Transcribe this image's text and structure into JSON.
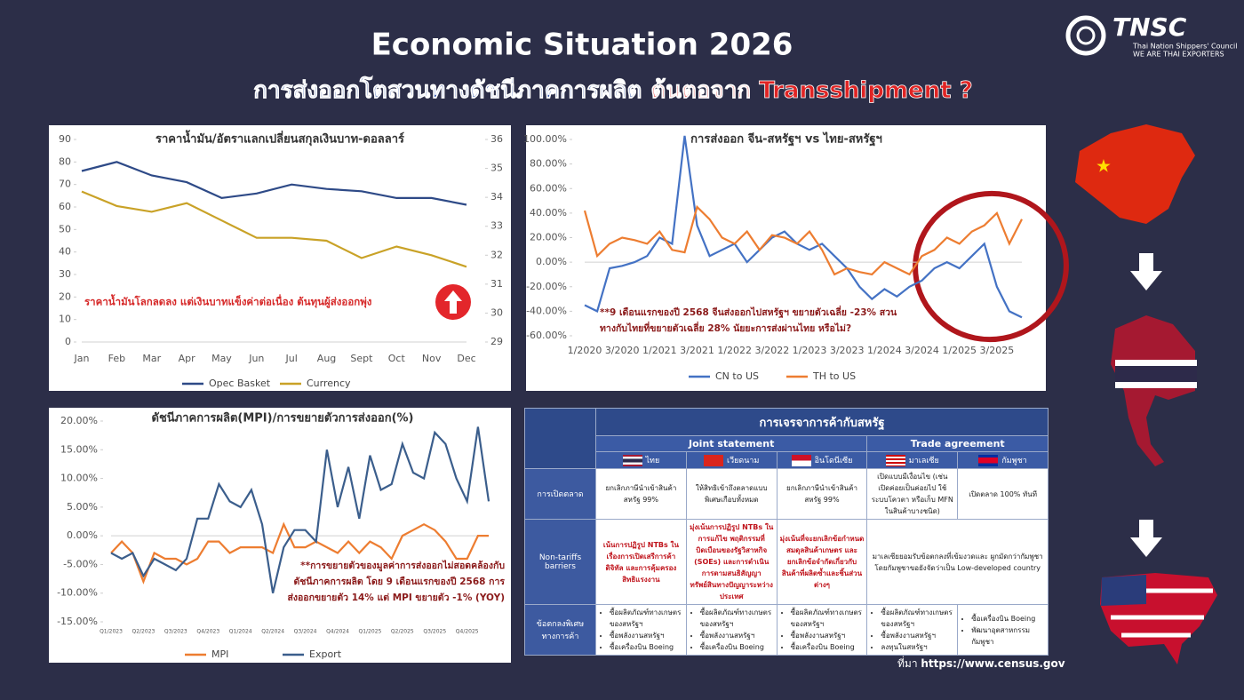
{
  "header": {
    "title": "Economic Situation 2026",
    "subtitle": "การส่งออกโตสวนทางดัชนีภาคการผลิต",
    "subtitle_highlight": "ต้นตอจาก Transshipment ?"
  },
  "logo": {
    "name": "TNSC",
    "line1": "Thai Nation Shippers' Council",
    "line2": "WE ARE THAI EXPORTERS"
  },
  "chart_data": [
    {
      "type": "line",
      "title": "ราคาน้ำมัน/อัตราแลกเปลี่ยนสกุลเงินบาท-ดอลลาร์",
      "categories": [
        "Jan",
        "Feb",
        "Mar",
        "Apr",
        "May",
        "Jun",
        "Jul",
        "Aug",
        "Sept",
        "Oct",
        "Nov",
        "Dec"
      ],
      "series": [
        {
          "name": "Opec Basket",
          "color": "#2e4a87",
          "values": [
            76,
            80,
            74,
            71,
            64,
            66,
            70,
            68,
            67,
            64,
            64,
            61
          ]
        },
        {
          "name": "Currency",
          "color": "#c9a227",
          "axis": "y2",
          "values": [
            34.2,
            33.7,
            33.5,
            33.8,
            33.2,
            32.6,
            32.6,
            32.5,
            31.9,
            32.3,
            32.0,
            31.6
          ]
        }
      ],
      "ylim": [
        0,
        90
      ],
      "yticks": [
        0,
        10,
        20,
        30,
        40,
        50,
        60,
        70,
        80,
        90
      ],
      "y2lim": [
        29,
        36
      ],
      "y2ticks": [
        29,
        30,
        31,
        32,
        33,
        34,
        35,
        36
      ],
      "grid": false,
      "legend": "bottom",
      "annotation": [
        "ราคาน้ำมันโลกลดลง แต่เงินบาทแข็งค่าต่อเนื่อง ต้นทุนผู้ส่งออกพุ่ง"
      ]
    },
    {
      "type": "line",
      "title": "การส่งออก จีน-สหรัฐฯ vs ไทย-สหรัฐฯ",
      "categories": [
        "1/2020",
        null,
        null,
        "3/2020",
        null,
        null,
        "1/2021",
        null,
        null,
        "3/2021",
        null,
        null,
        "1/2022",
        null,
        null,
        "3/2022",
        null,
        null,
        "1/2023",
        null,
        null,
        "3/2023",
        null,
        null,
        "1/2024",
        null,
        null,
        "3/2024",
        null,
        null,
        "1/2025",
        null,
        null,
        "3/2025",
        null,
        null
      ],
      "series": [
        {
          "name": "CN to US",
          "color": "#4472c4",
          "values": [
            -35,
            -40,
            -5,
            -3,
            0,
            5,
            20,
            15,
            103,
            30,
            5,
            10,
            15,
            0,
            10,
            20,
            25,
            15,
            10,
            15,
            5,
            -5,
            -20,
            -30,
            -22,
            -28,
            -20,
            -15,
            -5,
            0,
            -5,
            5,
            15,
            -20,
            -40,
            -45
          ]
        },
        {
          "name": "TH to US",
          "color": "#ed7d31",
          "values": [
            42,
            5,
            15,
            20,
            18,
            15,
            25,
            10,
            8,
            45,
            35,
            20,
            15,
            25,
            10,
            22,
            20,
            15,
            25,
            10,
            -10,
            -5,
            -8,
            -10,
            0,
            -5,
            -10,
            5,
            10,
            20,
            15,
            25,
            30,
            40,
            15,
            35
          ]
        }
      ],
      "ylim": [
        -60,
        100
      ],
      "yticks": [
        {
          "value": -60,
          "label": "-60.00%"
        },
        {
          "value": -40,
          "label": "-40.00%"
        },
        {
          "value": -20,
          "label": "-20.00%"
        },
        {
          "value": 0,
          "label": "0.00%"
        },
        {
          "value": 20,
          "label": "20.00%"
        },
        {
          "value": 40,
          "label": "40.00%"
        },
        {
          "value": 60,
          "label": "60.00%"
        },
        {
          "value": 80,
          "label": "80.00%"
        },
        {
          "value": 100,
          "label": "100.00%"
        }
      ],
      "grid": false,
      "legend": "bottom",
      "annotation": [
        "**9 เดือนแรกของปี 2568 จีนส่งออกไปสหรัฐฯ ขยายตัวเฉลี่ย -23% สวน",
        "ทางกับไทยที่ขยายตัวเฉลี่ย 28% นัยยะการส่งผ่านไทย หรือไม่?"
      ]
    },
    {
      "type": "line",
      "title": "ดัชนีภาคการผลิต(MPI)/การขยายตัวการส่งออก(%)",
      "categories": [
        "Q1/2023",
        null,
        null,
        "Q2/2023",
        null,
        null,
        "Q3/2023",
        null,
        null,
        "Q4/2023",
        null,
        null,
        "Q1/2024",
        null,
        null,
        "Q2/2024",
        null,
        null,
        "Q3/2024",
        null,
        null,
        "Q4/2024",
        null,
        null,
        "Q1/2025",
        null,
        null,
        "Q2/2025",
        null,
        null,
        "Q3/2025",
        null,
        null,
        "Q4/2025",
        null,
        null
      ],
      "series": [
        {
          "name": "MPI",
          "color": "#ed7d31",
          "values": [
            -3,
            -1,
            -3,
            -8,
            -3,
            -4,
            -4,
            -5,
            -4,
            -1,
            -1,
            -3,
            -2,
            -2,
            -2,
            -3,
            2,
            -2,
            -2,
            -1,
            -2,
            -3,
            -1,
            -3,
            -1,
            -2,
            -4,
            0,
            1,
            2,
            1,
            -1,
            -4,
            -4,
            0,
            0
          ]
        },
        {
          "name": "Export",
          "color": "#3b5e8c",
          "values": [
            -3,
            -4,
            -3,
            -7,
            -4,
            -5,
            -6,
            -4,
            3,
            3,
            9,
            6,
            5,
            8,
            2,
            -10,
            -2,
            1,
            1,
            -1,
            15,
            5,
            12,
            3,
            14,
            8,
            9,
            16,
            11,
            10,
            18,
            16,
            10,
            6,
            19,
            6
          ]
        }
      ],
      "ylim": [
        -15,
        20
      ],
      "yticks": [
        {
          "value": -15,
          "label": "-15.00%"
        },
        {
          "value": -10,
          "label": "-10.00%"
        },
        {
          "value": -5,
          "label": "-5.00%"
        },
        {
          "value": 0,
          "label": "0.00%"
        },
        {
          "value": 5,
          "label": "5.00%"
        },
        {
          "value": 10,
          "label": "10.00%"
        },
        {
          "value": 15,
          "label": "15.00%"
        },
        {
          "value": 20,
          "label": "20.00%"
        }
      ],
      "grid": false,
      "legend": "bottom",
      "annotation": [
        "**การขยายตัวของมูลค่าการส่งออกไม่สอดคล้องกับ",
        "ดัชนีภาคการผลิต โดย 9 เดือนแรกของปี 2568 การ",
        "ส่งออกขยายตัว 14% แต่ MPI ขยายตัว -1% (YOY)"
      ]
    }
  ],
  "table": {
    "title": "การเจรจาการค้ากับสหรัฐ",
    "groups": [
      "Joint statement",
      "Trade agreement"
    ],
    "countries": [
      "ไทย",
      "เวียดนาม",
      "อินโดนีเซีย",
      "มาเลเซีย",
      "กัมพูชา"
    ],
    "rows": [
      {
        "label": "การเปิดตลาด",
        "cells": [
          "ยกเลิกภาษีนำเข้าสินค้าสหรัฐ 99%",
          "ให้สิทธิเข้าถึงตลาดแบบพิเศษเกือบทั้งหมด",
          "ยกเลิกภาษีนำเข้าสินค้าสหรัฐ 99%",
          "เปิดแบบมีเงื่อนไข (เช่น เปิดค่อยเป็นค่อยไป ใช้ระบบโควตา หรือเก็บ MFN ในสินค้าบางชนิด)",
          "เปิดตลาด 100% ทันที"
        ]
      },
      {
        "label": "Non-tariffs barriers",
        "cells": [
          "เน้นการปฏิรูป NTBs ในเรื่องการเปิดเสรีการค้าดิจิทัล และการคุ้มครองสิทธิแรงงาน",
          "มุ่งเน้นการปฏิรูป NTBs ในการแก้ไข พฤติกรรมที่บิดเบือนของรัฐวิสาหกิจ (SOEs) และการดำเนินการตามสนธิสัญญาทรัพย์สินทางปัญญาระหว่างประเทศ",
          "มุ่งเน้นที่จะยกเลิกข้อกำหนดสมดุลสินค้าเกษตร และยกเลิกข้อจำกัดเกี่ยวกับสินค้าที่ผลิตซ้ำและชิ้นส่วนต่างๆ",
          "มาเลเซียยอมรับข้อตกลงที่เข้มงวดและ ผูกมัดกว่ากัมพูชา โดยกัมพูชาขอยังจัดว่าเป็น Low-developed country"
        ]
      },
      {
        "label": "ข้อตกลงพิเศษทางการค้า",
        "cells": [
          [
            "ซื้อผลิตภัณฑ์ทางเกษตรของสหรัฐฯ",
            "ซื้อพลังงานสหรัฐฯ",
            "ซื้อเครื่องบิน Boeing"
          ],
          [
            "ซื้อผลิตภัณฑ์ทางเกษตรของสหรัฐฯ",
            "ซื้อพลังงานสหรัฐฯ",
            "ซื้อเครื่องบิน Boeing"
          ],
          [
            "ซื้อผลิตภัณฑ์ทางเกษตรของสหรัฐฯ",
            "ซื้อพลังงานสหรัฐฯ",
            "ซื้อเครื่องบิน Boeing"
          ],
          [
            "ซื้อผลิตภัณฑ์ทางเกษตรของสหรัฐฯ",
            "ซื้อพลังงานสหรัฐฯ",
            "ลงทุนในสหรัฐฯ"
          ],
          [
            "ซื้อเครื่องบิน Boeing",
            "พัฒนาอุตสาหกรรมกัมพูชา"
          ]
        ]
      }
    ]
  },
  "source": {
    "label": "ที่มา",
    "url": "https://www.census.gov"
  }
}
